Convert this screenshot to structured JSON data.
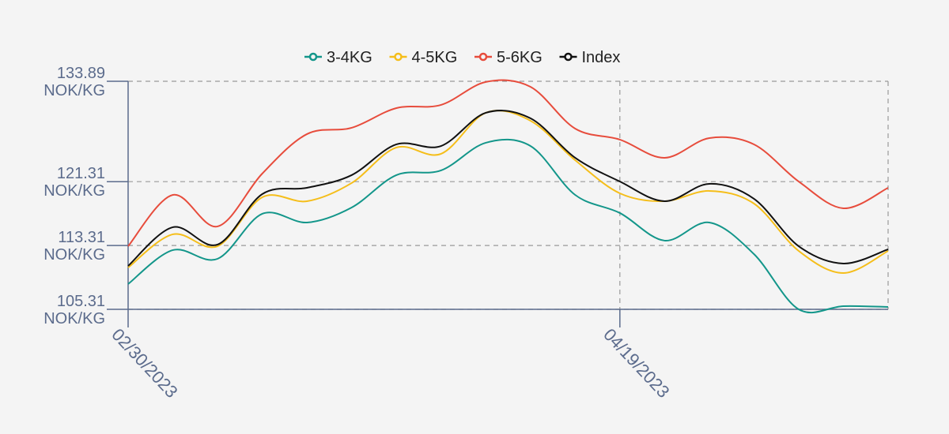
{
  "chart_data": {
    "type": "line",
    "categories": [
      "02/30/2023",
      null,
      null,
      null,
      null,
      null,
      null,
      null,
      null,
      null,
      null,
      "04/19/2023",
      null,
      null,
      null,
      null,
      null,
      null
    ],
    "series": [
      {
        "name": "3-4KG",
        "color": "#13968a",
        "values": [
          108.48,
          112.73,
          111.64,
          117.28,
          116.19,
          118.07,
          122.13,
          122.72,
          126.18,
          125.78,
          119.65,
          117.38,
          113.92,
          116.19,
          112.23,
          105.31,
          105.71,
          105.61
        ]
      },
      {
        "name": "4-5KG",
        "color": "#f5be1a",
        "values": [
          110.55,
          114.71,
          113.22,
          119.35,
          118.86,
          121.14,
          125.59,
          124.8,
          129.94,
          128.95,
          124.0,
          119.85,
          118.86,
          120.15,
          118.56,
          112.63,
          109.86,
          112.63
        ]
      },
      {
        "name": "5-6KG",
        "color": "#e74c3c",
        "values": [
          113.22,
          119.65,
          115.7,
          122.32,
          127.27,
          128.06,
          130.53,
          130.93,
          133.8,
          133.2,
          127.96,
          126.58,
          124.3,
          126.77,
          125.98,
          121.33,
          117.97,
          120.54
        ]
      },
      {
        "name": "Index",
        "color": "#111111",
        "values": [
          110.75,
          115.6,
          113.42,
          119.75,
          120.54,
          122.13,
          125.98,
          125.78,
          129.94,
          129.25,
          124.3,
          121.33,
          118.86,
          121.04,
          119.16,
          113.22,
          111.05,
          112.83
        ]
      }
    ],
    "ylim": [
      105.31,
      133.89
    ],
    "yticks": [
      {
        "value": 105.31,
        "label": "105.31 NOK/KG"
      },
      {
        "value": 113.31,
        "label": "113.31 NOK/KG"
      },
      {
        "value": 121.31,
        "label": "121.31 NOK/KG"
      },
      {
        "value": 133.89,
        "label": "133.89 NOK/KG"
      }
    ],
    "grid": true,
    "legend": "top"
  }
}
